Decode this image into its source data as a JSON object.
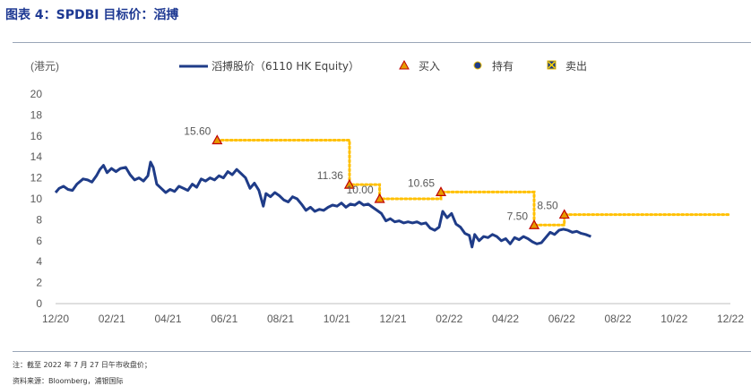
{
  "header": {
    "title": "图表 4：SPDBI 目标价：滔搏"
  },
  "footer": {
    "note": "注：截至 2022 年 7 月 27 日午市收盘价；",
    "source": "资料来源：Bloomberg，浦银国际"
  },
  "colors": {
    "price": "#1f3c88",
    "target": "#ffc000",
    "buy": "#e69b00",
    "marker_edge": "#c00000",
    "title": "#1f3a93"
  },
  "chart_data": {
    "type": "line",
    "unit_label": "(港元)",
    "ylim": [
      0,
      20
    ],
    "y_ticks": [
      0,
      2,
      4,
      6,
      8,
      10,
      12,
      14,
      16,
      18,
      20
    ],
    "x_range": [
      "2020-12-01",
      "2022-12-31"
    ],
    "x_ticks": [
      "12/20",
      "02/21",
      "04/21",
      "06/21",
      "08/21",
      "10/21",
      "12/21",
      "02/22",
      "04/22",
      "06/22",
      "08/22",
      "10/22",
      "12/22"
    ],
    "legend": {
      "price": "滔搏股价（6110 HK Equity）",
      "buy": "买入",
      "hold": "持有",
      "sell": "卖出"
    },
    "series": [
      {
        "name": "滔搏股价（6110 HK Equity）",
        "points": [
          [
            "2020-12-01",
            10.6
          ],
          [
            "2020-12-05",
            11.0
          ],
          [
            "2020-12-10",
            11.2
          ],
          [
            "2020-12-15",
            10.9
          ],
          [
            "2020-12-20",
            10.8
          ],
          [
            "2020-12-25",
            11.4
          ],
          [
            "2021-01-01",
            11.9
          ],
          [
            "2021-01-06",
            11.8
          ],
          [
            "2021-01-11",
            11.6
          ],
          [
            "2021-01-16",
            12.2
          ],
          [
            "2021-01-20",
            12.8
          ],
          [
            "2021-01-24",
            13.2
          ],
          [
            "2021-01-28",
            12.5
          ],
          [
            "2021-02-02",
            12.9
          ],
          [
            "2021-02-07",
            12.6
          ],
          [
            "2021-02-12",
            12.9
          ],
          [
            "2021-02-18",
            13.0
          ],
          [
            "2021-02-23",
            12.3
          ],
          [
            "2021-02-28",
            11.8
          ],
          [
            "2021-03-05",
            12.0
          ],
          [
            "2021-03-10",
            11.7
          ],
          [
            "2021-03-15",
            12.2
          ],
          [
            "2021-03-18",
            13.5
          ],
          [
            "2021-03-21",
            13.0
          ],
          [
            "2021-03-25",
            11.4
          ],
          [
            "2021-03-30",
            11.0
          ],
          [
            "2021-04-04",
            10.6
          ],
          [
            "2021-04-09",
            10.9
          ],
          [
            "2021-04-14",
            10.7
          ],
          [
            "2021-04-19",
            11.2
          ],
          [
            "2021-04-24",
            11.0
          ],
          [
            "2021-04-29",
            10.8
          ],
          [
            "2021-05-04",
            11.4
          ],
          [
            "2021-05-09",
            11.1
          ],
          [
            "2021-05-14",
            11.9
          ],
          [
            "2021-05-19",
            11.7
          ],
          [
            "2021-05-24",
            12.0
          ],
          [
            "2021-05-29",
            11.8
          ],
          [
            "2021-06-03",
            12.2
          ],
          [
            "2021-06-08",
            12.0
          ],
          [
            "2021-06-13",
            12.6
          ],
          [
            "2021-06-18",
            12.3
          ],
          [
            "2021-06-23",
            12.8
          ],
          [
            "2021-06-28",
            12.4
          ],
          [
            "2021-07-03",
            12.0
          ],
          [
            "2021-07-08",
            11.0
          ],
          [
            "2021-07-13",
            11.5
          ],
          [
            "2021-07-18",
            10.8
          ],
          [
            "2021-07-23",
            9.3
          ],
          [
            "2021-07-26",
            10.5
          ],
          [
            "2021-07-31",
            10.2
          ],
          [
            "2021-08-05",
            10.6
          ],
          [
            "2021-08-10",
            10.3
          ],
          [
            "2021-08-15",
            9.9
          ],
          [
            "2021-08-20",
            9.7
          ],
          [
            "2021-08-25",
            10.2
          ],
          [
            "2021-08-30",
            10.0
          ],
          [
            "2021-09-04",
            9.5
          ],
          [
            "2021-09-09",
            8.9
          ],
          [
            "2021-09-14",
            9.2
          ],
          [
            "2021-09-19",
            8.8
          ],
          [
            "2021-09-24",
            9.0
          ],
          [
            "2021-09-29",
            8.9
          ],
          [
            "2021-10-04",
            9.2
          ],
          [
            "2021-10-09",
            9.4
          ],
          [
            "2021-10-14",
            9.3
          ],
          [
            "2021-10-19",
            9.6
          ],
          [
            "2021-10-24",
            9.2
          ],
          [
            "2021-10-29",
            9.5
          ],
          [
            "2021-11-03",
            9.4
          ],
          [
            "2021-11-08",
            9.7
          ],
          [
            "2021-11-13",
            9.4
          ],
          [
            "2021-11-18",
            9.5
          ],
          [
            "2021-11-23",
            9.2
          ],
          [
            "2021-11-28",
            8.9
          ],
          [
            "2021-12-03",
            8.6
          ],
          [
            "2021-12-08",
            7.9
          ],
          [
            "2021-12-13",
            8.1
          ],
          [
            "2021-12-18",
            7.8
          ],
          [
            "2021-12-23",
            7.9
          ],
          [
            "2021-12-28",
            7.7
          ],
          [
            "2022-01-02",
            7.8
          ],
          [
            "2022-01-07",
            7.7
          ],
          [
            "2022-01-12",
            7.8
          ],
          [
            "2022-01-17",
            7.6
          ],
          [
            "2022-01-22",
            7.7
          ],
          [
            "2022-01-27",
            7.2
          ],
          [
            "2022-02-01",
            7.0
          ],
          [
            "2022-02-06",
            7.3
          ],
          [
            "2022-02-10",
            8.8
          ],
          [
            "2022-02-15",
            8.2
          ],
          [
            "2022-02-20",
            8.6
          ],
          [
            "2022-02-25",
            7.6
          ],
          [
            "2022-03-02",
            7.3
          ],
          [
            "2022-03-07",
            6.7
          ],
          [
            "2022-03-12",
            6.5
          ],
          [
            "2022-03-15",
            5.4
          ],
          [
            "2022-03-18",
            6.6
          ],
          [
            "2022-03-23",
            6.0
          ],
          [
            "2022-03-28",
            6.4
          ],
          [
            "2022-04-02",
            6.3
          ],
          [
            "2022-04-07",
            6.6
          ],
          [
            "2022-04-12",
            6.4
          ],
          [
            "2022-04-17",
            6.0
          ],
          [
            "2022-04-22",
            6.2
          ],
          [
            "2022-04-27",
            5.7
          ],
          [
            "2022-05-02",
            6.3
          ],
          [
            "2022-05-07",
            6.1
          ],
          [
            "2022-05-12",
            6.4
          ],
          [
            "2022-05-17",
            6.2
          ],
          [
            "2022-05-22",
            5.9
          ],
          [
            "2022-05-27",
            5.7
          ],
          [
            "2022-06-01",
            5.8
          ],
          [
            "2022-06-06",
            6.3
          ],
          [
            "2022-06-11",
            6.8
          ],
          [
            "2022-06-16",
            6.6
          ],
          [
            "2022-06-21",
            7.0
          ],
          [
            "2022-06-26",
            7.1
          ],
          [
            "2022-07-01",
            7.0
          ],
          [
            "2022-07-06",
            6.8
          ],
          [
            "2022-07-11",
            6.9
          ],
          [
            "2022-07-16",
            6.7
          ],
          [
            "2022-07-21",
            6.6
          ],
          [
            "2022-07-27",
            6.4
          ]
        ]
      }
    ],
    "target_prices": [
      {
        "date": "2021-06-01",
        "value": 15.6,
        "label": "15.60",
        "rating": "买入"
      },
      {
        "date": "2021-10-28",
        "value": 11.36,
        "label": "11.36",
        "rating": "买入"
      },
      {
        "date": "2021-12-01",
        "value": 10.0,
        "label": "10.00",
        "rating": "买入"
      },
      {
        "date": "2022-02-08",
        "value": 10.65,
        "label": "10.65",
        "rating": "买入"
      },
      {
        "date": "2022-05-24",
        "value": 7.5,
        "label": "7.50",
        "rating": "买入"
      },
      {
        "date": "2022-06-27",
        "value": 8.5,
        "label": "8.50",
        "rating": "买入"
      }
    ],
    "target_line_end": "2022-12-31"
  }
}
